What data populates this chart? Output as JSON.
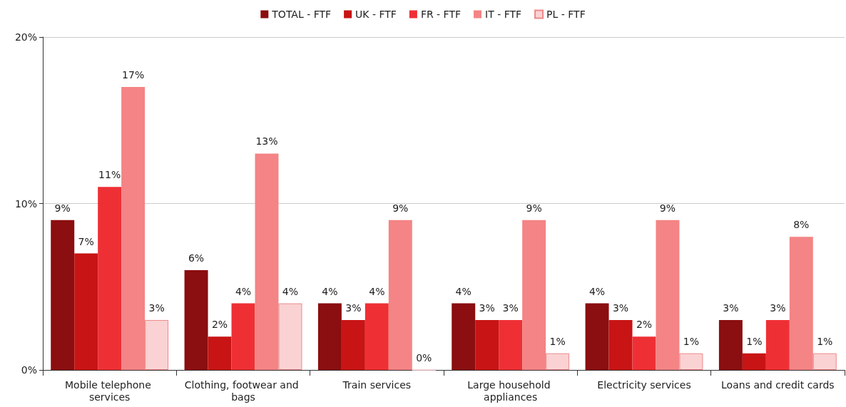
{
  "chart_data": {
    "type": "bar",
    "categories": [
      "Mobile telephone services",
      "Clothing, footwear and bags",
      "Train services",
      "Large household appliances",
      "Electricity services",
      "Loans and credit cards"
    ],
    "series": [
      {
        "name": "TOTAL - FTF",
        "color": "#8b0e10",
        "values": [
          9,
          6,
          4,
          4,
          4,
          3
        ],
        "value_labels": [
          "9%",
          "6%",
          "4%",
          "4%",
          "4%",
          "3%"
        ]
      },
      {
        "name": "UK - FTF",
        "color": "#c81414",
        "values": [
          7,
          2,
          3,
          3,
          3,
          1
        ],
        "value_labels": [
          "7%",
          "2%",
          "3%",
          "3%",
          "3%",
          "1%"
        ]
      },
      {
        "name": "FR - FTF",
        "color": "#ee3035",
        "values": [
          11,
          4,
          4,
          3,
          2,
          3
        ],
        "value_labels": [
          "11%",
          "4%",
          "4%",
          "3%",
          "2%",
          "3%"
        ]
      },
      {
        "name": "IT - FTF",
        "color": "#f48485",
        "values": [
          17,
          13,
          9,
          9,
          9,
          8
        ],
        "value_labels": [
          "17%",
          "13%",
          "9%",
          "9%",
          "9%",
          "8%"
        ]
      },
      {
        "name": "PL - FTF",
        "color": "#fad2d3",
        "values": [
          3,
          4,
          0,
          1,
          1,
          1
        ],
        "value_labels": [
          "3%",
          "4%",
          "0%",
          "1%",
          "1%",
          "1%"
        ]
      }
    ],
    "ylim": [
      0,
      20
    ],
    "yticks": [
      {
        "value": 0,
        "label": "0%"
      },
      {
        "value": 10,
        "label": "10%"
      },
      {
        "value": 20,
        "label": "20%"
      }
    ],
    "grid": "y",
    "legend": "top"
  }
}
